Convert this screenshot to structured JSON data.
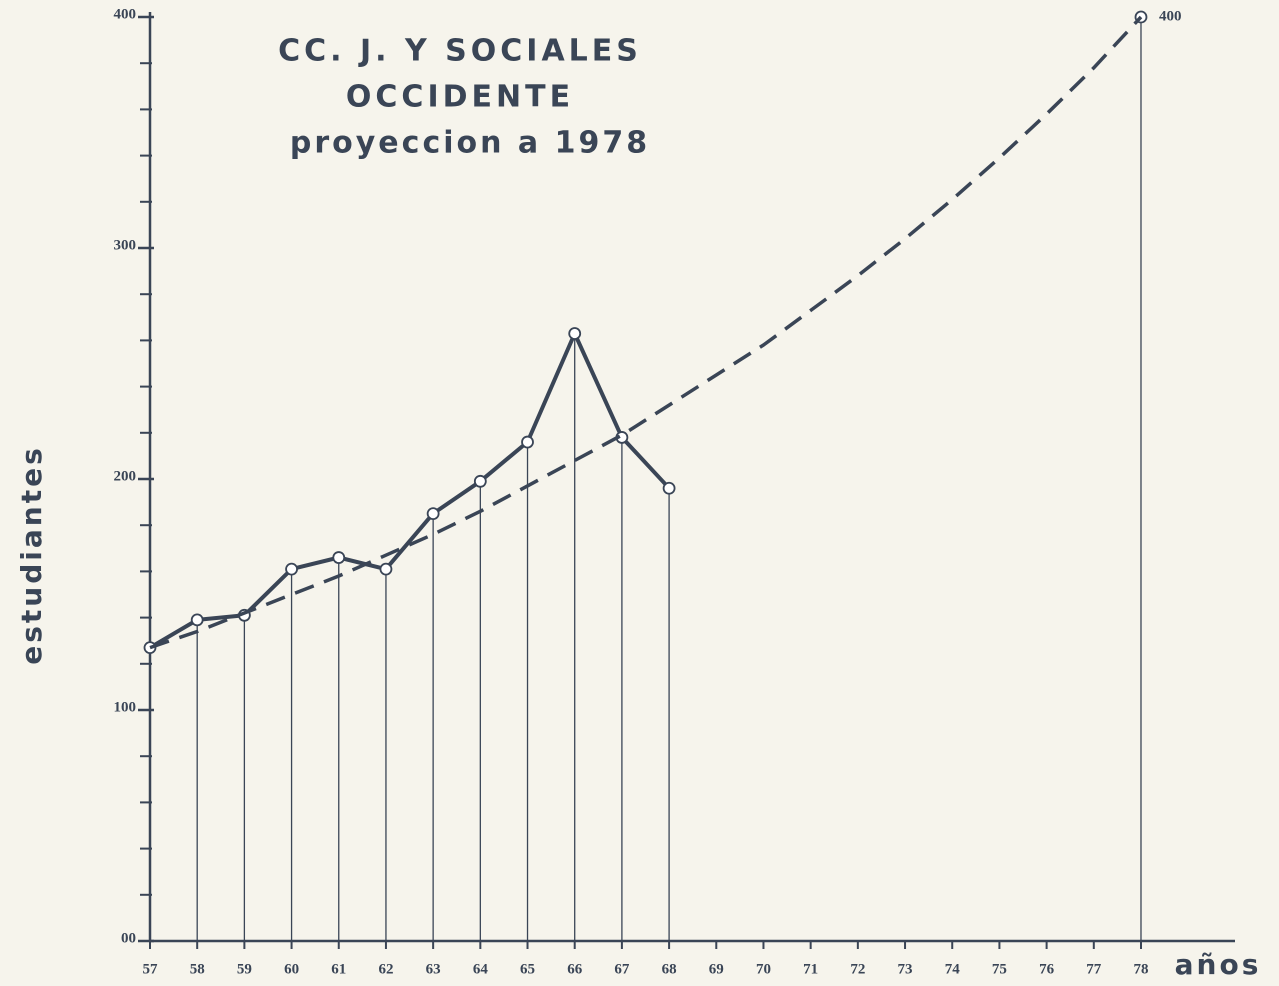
{
  "chart_data": {
    "type": "line",
    "title": [
      "CC. J. Y SOCIALES",
      "OCCIDENTE",
      "proyeccion a 1978"
    ],
    "x_label": "años",
    "y_label": "estudiantes",
    "categories": [
      "57",
      "58",
      "59",
      "60",
      "61",
      "62",
      "63",
      "64",
      "65",
      "66",
      "67",
      "68",
      "69",
      "70",
      "71",
      "72",
      "73",
      "74",
      "75",
      "76",
      "77",
      "78"
    ],
    "series": [
      {
        "color": "#3a4556",
        "style": "solid",
        "markers": true,
        "drop_lines": true,
        "values": [
          127,
          139,
          141,
          161,
          166,
          161,
          185,
          199,
          216,
          263,
          218,
          196,
          null,
          null,
          null,
          null,
          null,
          null,
          null,
          null,
          null,
          400
        ]
      },
      {
        "color": "#3a4556",
        "style": "dashed",
        "markers": false,
        "drop_lines": false,
        "values": [
          127,
          134,
          142,
          150,
          158,
          167,
          176,
          186,
          197,
          208,
          219,
          232,
          245,
          258,
          273,
          288,
          304,
          321,
          339,
          358,
          378,
          400
        ]
      }
    ],
    "ylim": [
      0,
      400
    ],
    "yticks": [
      {
        "value": 0,
        "label": "00"
      },
      100,
      200,
      300,
      400
    ],
    "yminorticks": [
      20,
      40,
      60,
      80,
      120,
      140,
      160,
      180,
      220,
      240,
      260,
      280,
      320,
      340,
      360,
      380
    ],
    "grid": false
  }
}
